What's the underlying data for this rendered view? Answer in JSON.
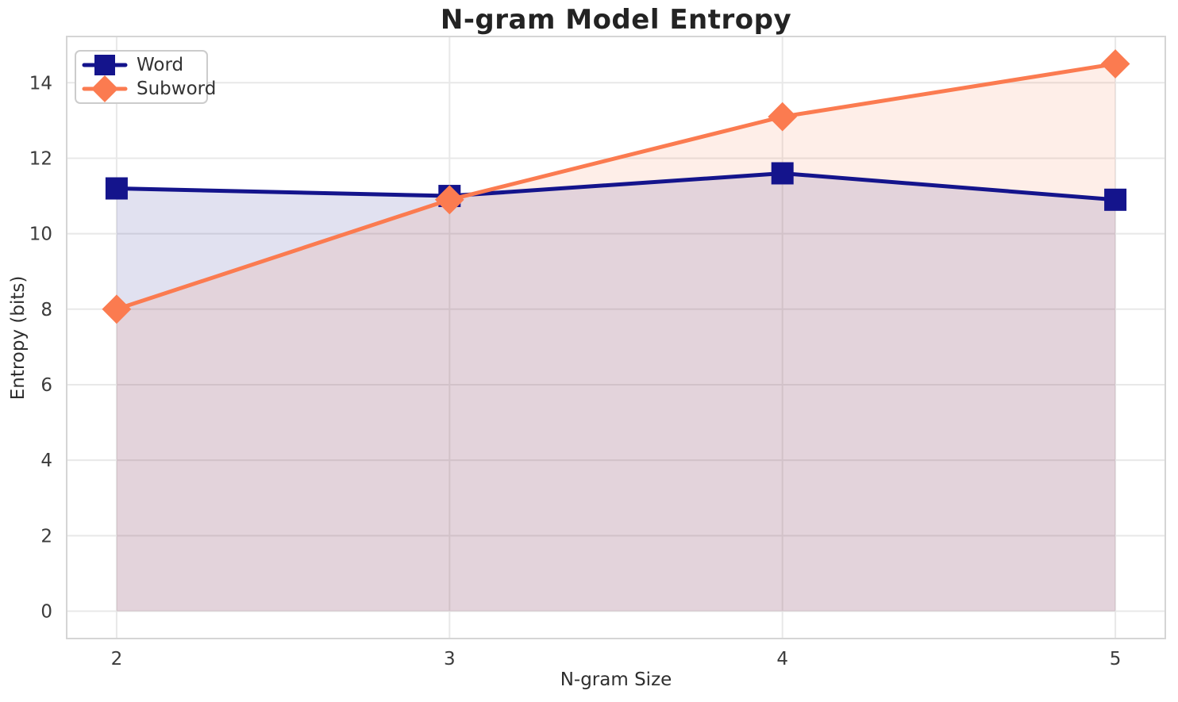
{
  "chart_data": {
    "type": "line",
    "title": "N-gram Model Entropy",
    "xlabel": "N-gram Size",
    "ylabel": "Entropy (bits)",
    "x": [
      2,
      3,
      4,
      5
    ],
    "series": [
      {
        "name": "Word",
        "values": [
          11.2,
          11.0,
          11.6,
          10.9
        ],
        "color": "#14148C",
        "marker": "square"
      },
      {
        "name": "Subword",
        "values": [
          8.0,
          10.9,
          13.1,
          14.5
        ],
        "color": "#FB7B50",
        "marker": "diamond"
      }
    ],
    "xticks": [
      2,
      3,
      4,
      5
    ],
    "yticks": [
      0,
      2,
      4,
      6,
      8,
      10,
      12,
      14
    ],
    "xlim": [
      1.85,
      5.15
    ],
    "ylim": [
      -0.725,
      15.225
    ],
    "area_fill_to": 0,
    "area_opacity": 0.13,
    "line_width": 5,
    "grid": true,
    "legend_position": "upper left",
    "colors": {
      "grid": "#e8e8e8",
      "spine": "#d5d5d5",
      "tick_text": "#3c3c3c",
      "title_text": "#232323",
      "legend_border": "#cccccc",
      "legend_text": "#333333",
      "background": "#ffffff"
    }
  }
}
